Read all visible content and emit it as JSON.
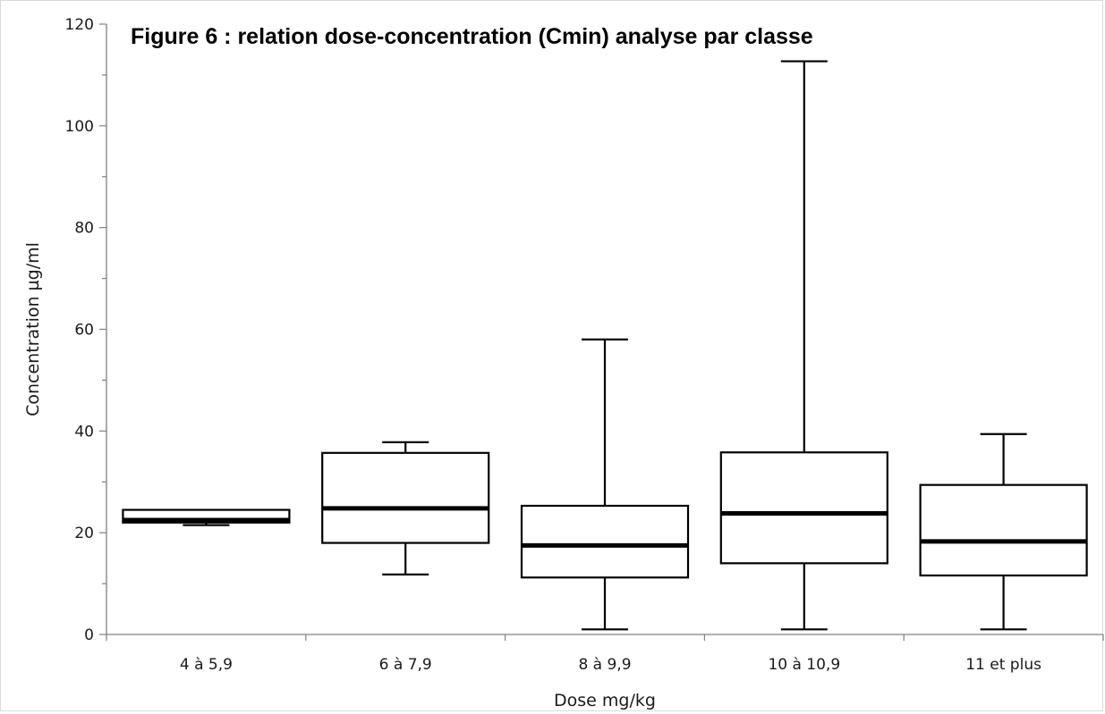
{
  "chart_data": {
    "type": "boxplot",
    "title": "Figure 6 : relation dose-concentration (Cmin) analyse par classe",
    "xlabel": "Dose mg/kg",
    "ylabel": "Concentration µg/ml",
    "ylim": [
      0,
      120
    ],
    "yticks": [
      0,
      20,
      40,
      60,
      80,
      100,
      120
    ],
    "categories": [
      "4 à 5,9",
      "6 à 7,9",
      "8 à 9,9",
      "10 à 10,9",
      "11 et plus"
    ],
    "boxes": [
      {
        "min": 21.5,
        "q1": 22.0,
        "median": 22.5,
        "q3": 24.5,
        "max": 24.5
      },
      {
        "min": 11.8,
        "q1": 18.0,
        "median": 24.8,
        "q3": 35.7,
        "max": 37.8
      },
      {
        "min": 1.0,
        "q1": 11.2,
        "median": 17.5,
        "q3": 25.3,
        "max": 58.0
      },
      {
        "min": 1.0,
        "q1": 14.0,
        "median": 23.8,
        "q3": 35.8,
        "max": 112.7
      },
      {
        "min": 1.0,
        "q1": 11.6,
        "median": 18.3,
        "q3": 29.4,
        "max": 39.4
      }
    ],
    "grid": false,
    "legend": "none",
    "colors": {
      "box_fill": "#ffffff",
      "stroke": "#000000",
      "axis": "#808080"
    }
  }
}
